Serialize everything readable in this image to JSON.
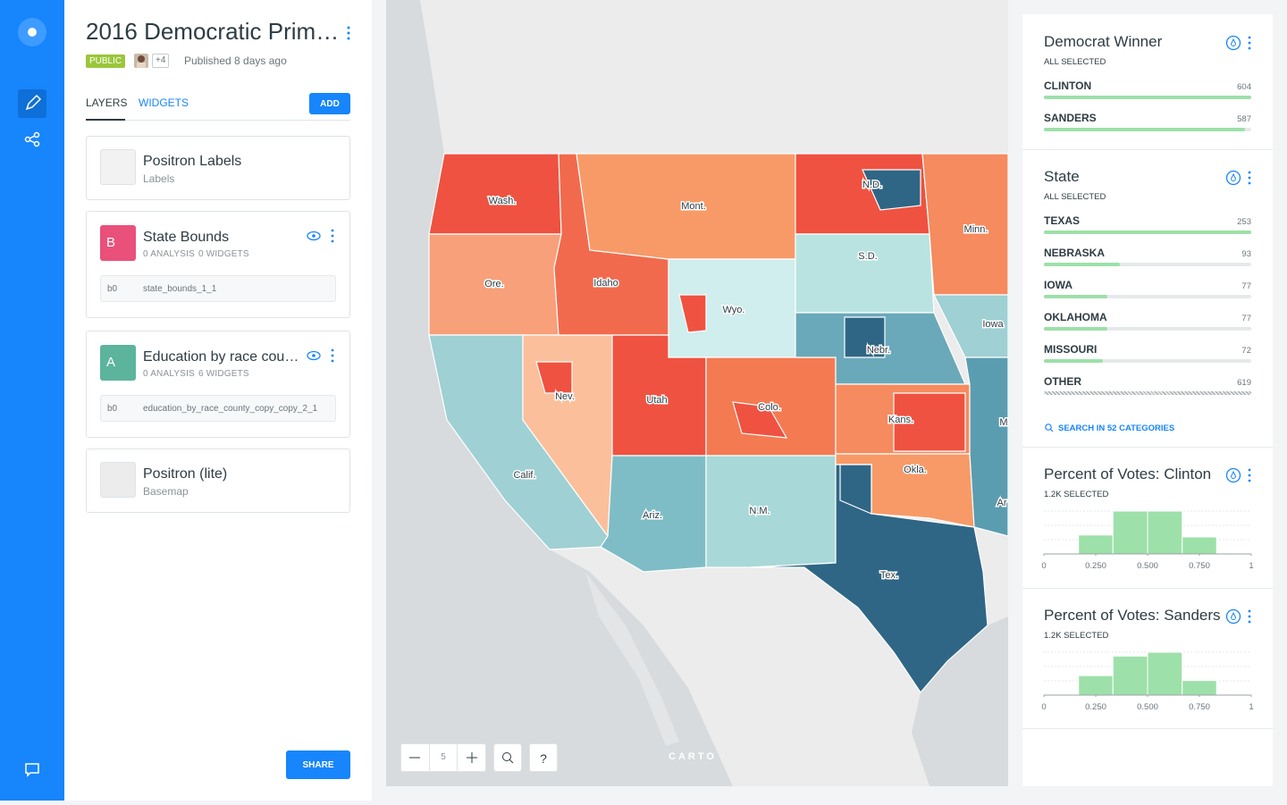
{
  "header": {
    "title": "2016 Democratic Prim…",
    "badge": "PUBLIC",
    "collaborators": "+4",
    "published": "Published 8 days ago"
  },
  "tabs": {
    "items": [
      "LAYERS",
      "WIDGETS"
    ],
    "action": "ADD"
  },
  "layers": [
    {
      "name": "Positron Labels",
      "kind": "Labels"
    },
    {
      "letter": "B",
      "name": "State Bounds",
      "analysis": "0 ANALYSIS",
      "widgets": "0 WIDGETS",
      "source_id": "b0",
      "source": "state_bounds_1_1"
    },
    {
      "letter": "A",
      "name": "Education by race cou…",
      "analysis": "0 ANALYSIS",
      "widgets": "6 WIDGETS",
      "source_id": "b0",
      "source": "education_by_race_county_copy_copy_2_1"
    },
    {
      "name": "Positron (lite)",
      "kind": "Basemap"
    }
  ],
  "share": "SHARE",
  "map": {
    "labels": [
      "Wash.",
      "Mont.",
      "N.D.",
      "Minn.",
      "Ore.",
      "Idaho",
      "Wyo.",
      "S.D.",
      "Iowa",
      "Nebr.",
      "Nev.",
      "Utah",
      "Colo.",
      "Kans.",
      "Calif.",
      "Ariz.",
      "N.M.",
      "Okla.",
      "Tex.",
      "Ar",
      "M"
    ],
    "zoom": 5,
    "help": "?",
    "logo": "CARTO"
  },
  "widgets": [
    {
      "type": "category",
      "title": "Democrat Winner",
      "status": "ALL SELECTED",
      "categories": [
        "CLINTON",
        "SANDERS"
      ],
      "values": [
        604,
        587
      ]
    },
    {
      "type": "category",
      "title": "State",
      "status": "ALL SELECTED",
      "categories": [
        "TEXAS",
        "NEBRASKA",
        "IOWA",
        "OKLAHOMA",
        "MISSOURI",
        "OTHER"
      ],
      "values": [
        253,
        93,
        77,
        77,
        72,
        619
      ],
      "search": "SEARCH IN 52 CATEGORIES"
    },
    {
      "type": "histogram",
      "title": "Percent of Votes: Clinton",
      "status": "1.2K SELECTED",
      "bins": [
        0,
        0.167,
        0.333,
        0.5,
        0.667,
        0.833,
        1
      ],
      "values": [
        0,
        190,
        430,
        430,
        170,
        0
      ],
      "xlim": [
        0,
        1
      ],
      "xticks": [
        0,
        {
          "value": 0.25,
          "label": "0.250"
        },
        {
          "value": 0.5,
          "label": "0.500"
        },
        {
          "value": 0.75,
          "label": "0.750"
        },
        1
      ]
    },
    {
      "type": "histogram",
      "title": "Percent of Votes: Sanders",
      "status": "1.2K SELECTED",
      "bins": [
        0,
        0.167,
        0.333,
        0.5,
        0.667,
        0.833,
        1
      ],
      "values": [
        0,
        200,
        400,
        440,
        150,
        0
      ],
      "xlim": [
        0,
        1
      ],
      "xticks": [
        0,
        {
          "value": 0.25,
          "label": "0.250"
        },
        {
          "value": 0.5,
          "label": "0.500"
        },
        {
          "value": 0.75,
          "label": "0.750"
        },
        1
      ]
    }
  ]
}
